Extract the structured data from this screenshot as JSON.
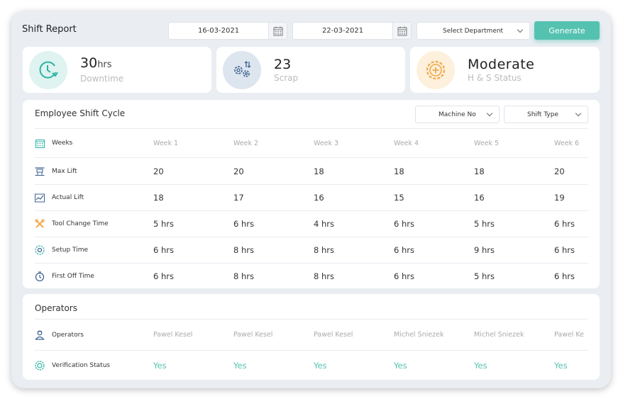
{
  "header": {
    "title": "Shift Report",
    "start_date": "16-03-2021",
    "end_date": "22-03-2021",
    "department_placeholder": "Select Department",
    "generate_label": "Generate"
  },
  "stats": [
    {
      "value": "30",
      "unit": "hrs",
      "label": "Downtime",
      "icon": "clock-arrow-icon",
      "color": "#2bb3a3"
    },
    {
      "value": "23",
      "unit": "",
      "label": "Scrap",
      "icon": "gears-sort-icon",
      "color": "#4a6fa5"
    },
    {
      "value": "Moderate",
      "unit": "",
      "label": "H & S Status",
      "icon": "gear-plus-icon",
      "color": "#f2a94a"
    }
  ],
  "shift_cycle": {
    "title": "Employee Shift Cycle",
    "filters": {
      "machine": "Machine No",
      "shift": "Shift Type"
    },
    "weeks_label": "Weeks",
    "weeks": [
      "Week 1",
      "Week 2",
      "Week 3",
      "Week 4",
      "Week 5",
      "Week 6"
    ],
    "rows": [
      {
        "label": "Max Lift",
        "icon": "max-lift-icon",
        "values": [
          "20",
          "20",
          "18",
          "18",
          "18",
          "20"
        ]
      },
      {
        "label": "Actual Lift",
        "icon": "actual-lift-icon",
        "values": [
          "18",
          "17",
          "16",
          "15",
          "16",
          "19"
        ]
      },
      {
        "label": "Tool Change Time",
        "icon": "tools-icon",
        "values": [
          "5 hrs",
          "6 hrs",
          "4 hrs",
          "6 hrs",
          "5 hrs",
          "6 hrs"
        ]
      },
      {
        "label": "Setup Time",
        "icon": "setup-icon",
        "values": [
          "6 hrs",
          "8 hrs",
          "8 hrs",
          "6 hrs",
          "9 hrs",
          "6 hrs"
        ]
      },
      {
        "label": "First Off Time",
        "icon": "timer-icon",
        "values": [
          "6 hrs",
          "8 hrs",
          "8 hrs",
          "6 hrs",
          "5 hrs",
          "6 hrs"
        ]
      }
    ]
  },
  "operators": {
    "title": "Operators",
    "operators_label": "Operators",
    "names": [
      "Pawel Kesel",
      "Pawel Kesel",
      "Pawel Kesel",
      "Michel Sniezek",
      "Michel Sniezek",
      "Pawel Ke"
    ],
    "verification_label": "Verification Status",
    "verification": [
      "Yes",
      "Yes",
      "Yes",
      "Yes",
      "Yes",
      "Yes"
    ]
  }
}
